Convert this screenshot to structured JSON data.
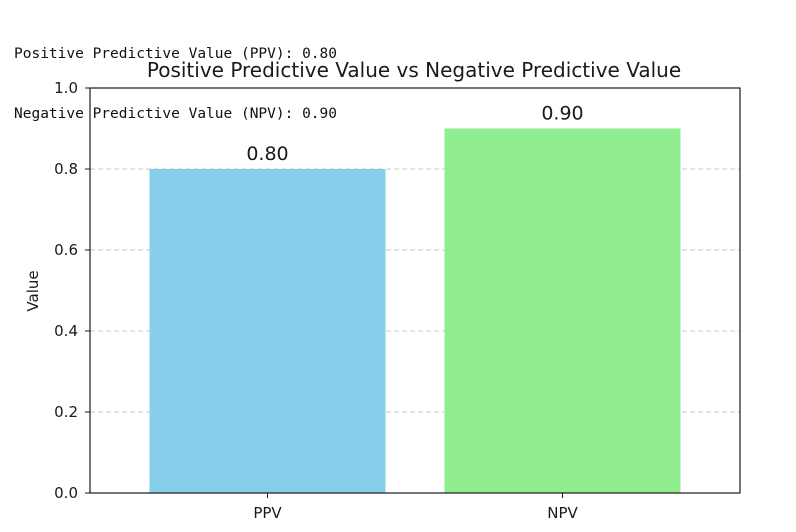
{
  "console": {
    "lines": [
      "Positive Predictive Value (PPV): 0.80",
      "Negative Predictive Value (NPV): 0.90"
    ]
  },
  "chart_data": {
    "type": "bar",
    "title": "Positive Predictive Value vs Negative Predictive Value",
    "xlabel": "",
    "ylabel": "Value",
    "categories": [
      "PPV",
      "NPV"
    ],
    "values": [
      0.8,
      0.9
    ],
    "bar_labels": [
      "0.80",
      "0.90"
    ],
    "colors": [
      "#87CEEB",
      "#90EE90"
    ],
    "ylim": [
      0,
      1.0
    ],
    "yticks": [
      0.0,
      0.2,
      0.4,
      0.6,
      0.8,
      1.0
    ],
    "ytick_labels": [
      "0.0",
      "0.2",
      "0.4",
      "0.6",
      "0.8",
      "1.0"
    ],
    "grid": "y-dashed"
  }
}
